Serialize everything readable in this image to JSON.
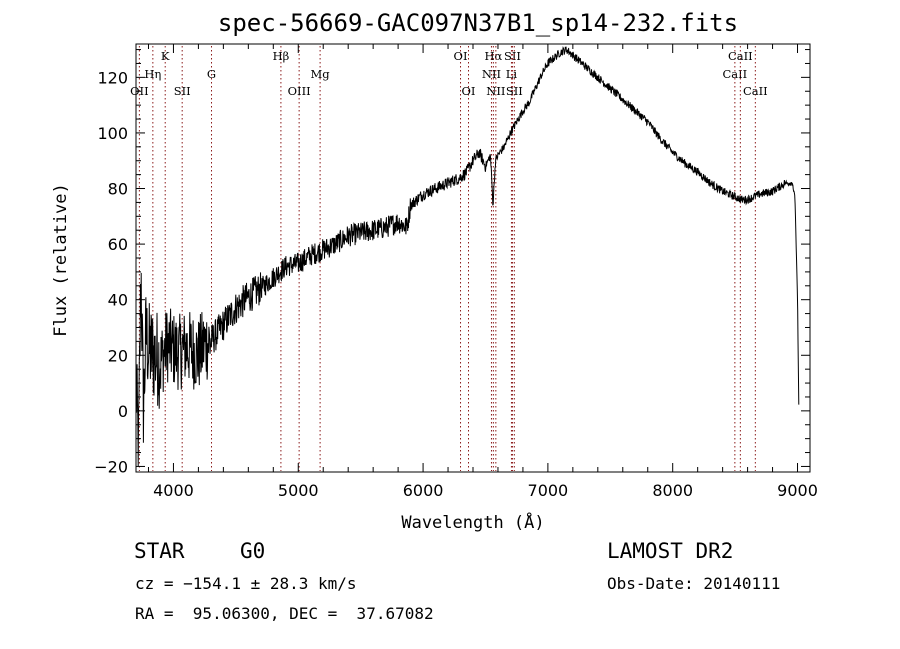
{
  "chart_data": {
    "type": "line",
    "title": "spec-56669-GAC097N37B1_sp14-232.fits",
    "xlabel": "Wavelength (Å)",
    "ylabel": "Flux (relative)",
    "xlim": [
      3700,
      9100
    ],
    "ylim": [
      -22,
      132
    ],
    "x_ticks": [
      4000,
      5000,
      6000,
      7000,
      8000,
      9000
    ],
    "y_ticks": [
      -20,
      0,
      20,
      40,
      60,
      80,
      100,
      120
    ],
    "grid": false,
    "line_color": "#000000",
    "marker_color": "#8b1a1a",
    "spectrum": {
      "x": [
        3700,
        3720,
        3740,
        3760,
        3780,
        3800,
        3850,
        3900,
        3950,
        4000,
        4050,
        4100,
        4150,
        4200,
        4250,
        4300,
        4350,
        4400,
        4450,
        4500,
        4600,
        4700,
        4800,
        4850,
        4900,
        5000,
        5100,
        5200,
        5300,
        5400,
        5500,
        5600,
        5700,
        5800,
        5870,
        5900,
        6000,
        6100,
        6200,
        6300,
        6350,
        6400,
        6450,
        6500,
        6540,
        6560,
        6580,
        6600,
        6650,
        6700,
        6750,
        6800,
        6850,
        6900,
        6950,
        7000,
        7050,
        7100,
        7150,
        7200,
        7300,
        7400,
        7500,
        7600,
        7700,
        7800,
        7900,
        8000,
        8100,
        8200,
        8300,
        8400,
        8450,
        8500,
        8550,
        8600,
        8650,
        8700,
        8800,
        8900,
        8960,
        8980,
        9000,
        9010
      ],
      "y": [
        10,
        -15,
        50,
        0,
        28,
        22,
        20,
        18,
        24,
        22,
        21,
        23,
        22,
        20,
        24,
        25,
        28,
        31,
        34,
        37,
        41,
        44,
        48,
        50,
        52,
        53,
        56,
        58,
        60,
        63,
        64,
        65,
        66,
        68,
        66,
        74,
        78,
        80,
        82,
        84,
        86,
        90,
        93,
        88,
        92,
        74,
        90,
        92,
        95,
        100,
        104,
        108,
        111,
        116,
        121,
        125,
        127,
        129,
        130,
        128,
        124,
        120,
        116,
        112,
        108,
        104,
        98,
        93,
        89,
        86,
        82,
        79,
        78,
        77,
        76,
        76,
        77,
        78,
        79,
        82,
        82,
        76,
        40,
        2
      ]
    },
    "lines": [
      {
        "label": "OII",
        "wl": 3727,
        "row": 3
      },
      {
        "label": "Hη",
        "wl": 3835,
        "row": 2
      },
      {
        "label": "K",
        "wl": 3934,
        "row": 1
      },
      {
        "label": "SII",
        "wl": 4070,
        "row": 3
      },
      {
        "label": "G",
        "wl": 4305,
        "row": 2
      },
      {
        "label": "Hβ",
        "wl": 4861,
        "row": 1
      },
      {
        "label": "OIII",
        "wl": 5007,
        "row": 3
      },
      {
        "label": "Mg",
        "wl": 5175,
        "row": 2
      },
      {
        "label": "OI",
        "wl": 6300,
        "row": 1
      },
      {
        "label": "OI",
        "wl": 6364,
        "row": 3
      },
      {
        "label": "Hα",
        "wl": 6563,
        "row": 1
      },
      {
        "label": "NII",
        "wl": 6548,
        "row": 2
      },
      {
        "label": "NII",
        "wl": 6583,
        "row": 3
      },
      {
        "label": "SII",
        "wl": 6716,
        "row": 1
      },
      {
        "label": "Li",
        "wl": 6708,
        "row": 2
      },
      {
        "label": "SII",
        "wl": 6731,
        "row": 3
      },
      {
        "label": "CaII",
        "wl": 8498,
        "row": 2
      },
      {
        "label": "CaII",
        "wl": 8542,
        "row": 1
      },
      {
        "label": "CaII",
        "wl": 8662,
        "row": 3
      }
    ]
  },
  "info": {
    "class": "STAR",
    "subclass": "G0",
    "survey": "LAMOST DR2",
    "cz": "cz = −154.1 ± 28.3 km/s",
    "obs_date": "Obs-Date: 20140111",
    "radec": "RA =  95.06300, DEC =  37.67082"
  }
}
